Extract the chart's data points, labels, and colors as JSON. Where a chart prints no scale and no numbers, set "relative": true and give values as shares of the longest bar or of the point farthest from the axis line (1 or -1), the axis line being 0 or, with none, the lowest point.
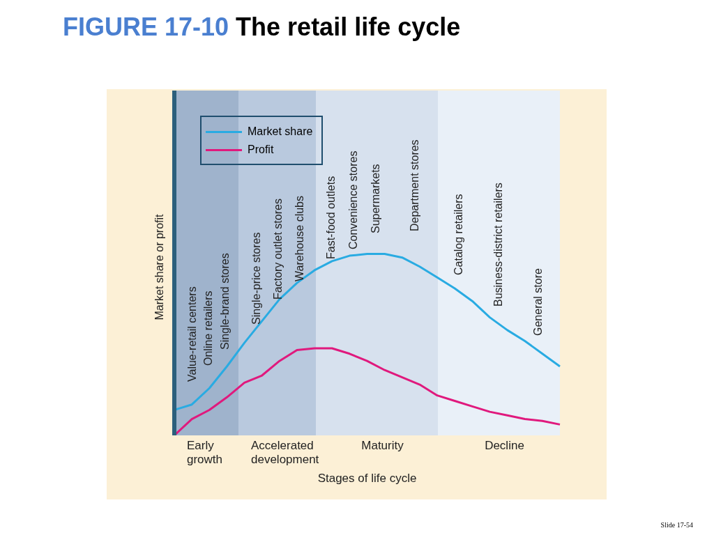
{
  "chart_data": {
    "type": "line",
    "title": "FIGURE 17-10 The retail life cycle",
    "xlabel": "Stages of life cycle",
    "ylabel": "Market share or profit",
    "relative": true,
    "tick_labels": false,
    "legend": "top left",
    "categories": [
      null,
      null,
      null,
      null,
      null,
      null,
      null,
      null,
      null,
      null,
      null,
      null,
      null,
      null,
      null,
      null,
      null,
      null,
      null,
      null,
      null,
      null,
      null
    ],
    "series": [
      {
        "name": "Market share",
        "color": "#29abe2",
        "values": [
          0.14,
          0.17,
          0.26,
          0.38,
          0.51,
          0.63,
          0.75,
          0.84,
          0.91,
          0.96,
          0.99,
          1,
          1,
          0.98,
          0.93,
          0.87,
          0.81,
          0.74,
          0.65,
          0.58,
          0.52,
          0.45,
          0.38
        ]
      },
      {
        "name": "Profit",
        "color": "#e0197d",
        "values": [
          0,
          0.09,
          0.14,
          0.21,
          0.29,
          0.33,
          0.41,
          0.47,
          0.48,
          0.48,
          0.45,
          0.41,
          0.36,
          0.32,
          0.28,
          0.22,
          0.19,
          0.16,
          0.13,
          0.11,
          0.09,
          0.08,
          0.06
        ]
      }
    ],
    "annotations": [
      "Early growth",
      "Accelerated development",
      "Maturity",
      "Decline",
      "Value-retail centers",
      "Online retailers",
      "Single-brand stores",
      "Single-price stores",
      "Factory outlet stores",
      "Warehouse clubs",
      "Fast-food outlets",
      "Convenience stores",
      "Supermarkets",
      "Department stores",
      "Catalog retailers",
      "Business-district retailers",
      "General store",
      "Slide 17-54"
    ]
  }
}
